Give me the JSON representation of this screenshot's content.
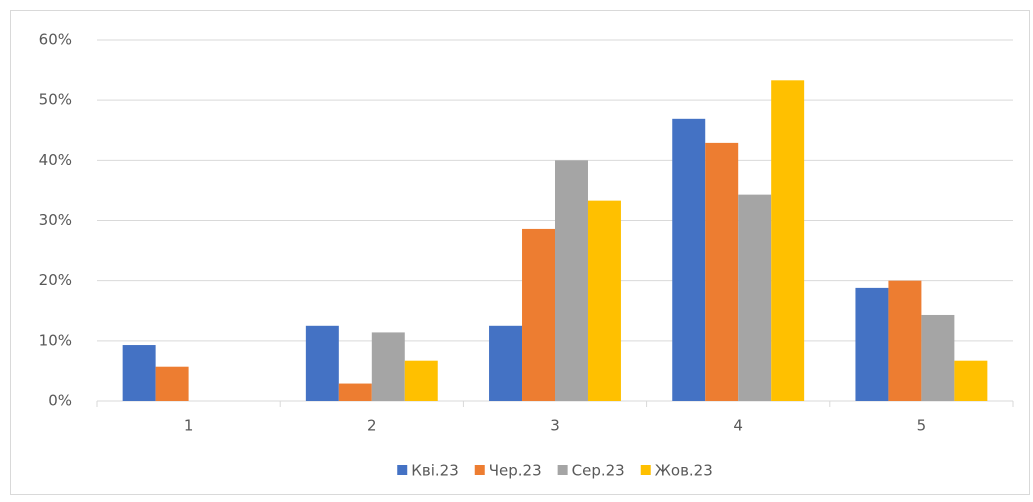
{
  "chart_data": {
    "type": "bar",
    "categories": [
      "1",
      "2",
      "3",
      "4",
      "5"
    ],
    "series": [
      {
        "name": "Кві.23",
        "color": "#4472c4",
        "values": [
          9.3,
          12.5,
          12.5,
          46.9,
          18.8
        ]
      },
      {
        "name": "Чер.23",
        "color": "#ed7d31",
        "values": [
          5.7,
          2.9,
          28.6,
          42.9,
          20.0
        ]
      },
      {
        "name": "Сер.23",
        "color": "#a5a5a5",
        "values": [
          0,
          11.4,
          40.0,
          34.3,
          14.3
        ]
      },
      {
        "name": "Жов.23",
        "color": "#ffc000",
        "values": [
          0,
          6.7,
          33.3,
          53.3,
          6.7
        ]
      }
    ],
    "ylim": [
      0,
      60
    ],
    "yticks": [
      {
        "value": 0,
        "label": "0%"
      },
      {
        "value": 10,
        "label": "10%"
      },
      {
        "value": 20,
        "label": "20%"
      },
      {
        "value": 30,
        "label": "30%"
      },
      {
        "value": 40,
        "label": "40%"
      },
      {
        "value": 50,
        "label": "50%"
      },
      {
        "value": 60,
        "label": "60%"
      }
    ],
    "grid": true,
    "legend": "bottom"
  }
}
